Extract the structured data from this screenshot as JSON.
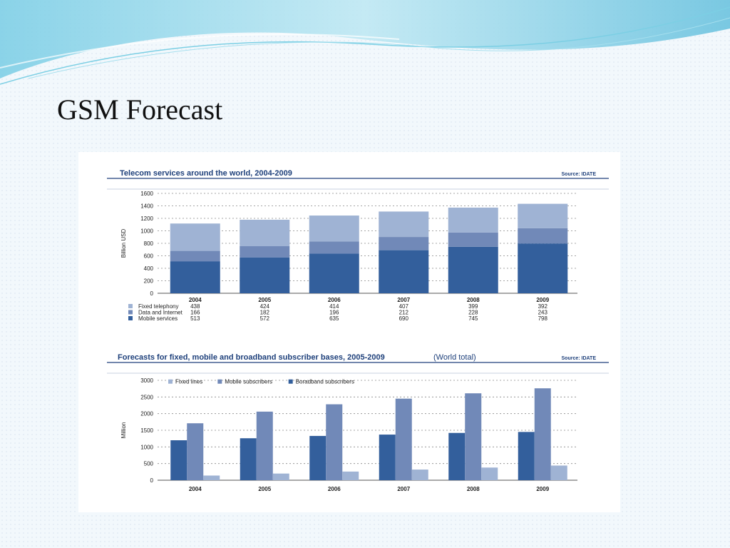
{
  "slide": {
    "title": "GSM Forecast"
  },
  "colors": {
    "fixed": "#9fb3d4",
    "data": "#7189b8",
    "mobile": "#335f9c",
    "title_blue": "#1d3f7a",
    "swoosh_light": "#c9ecf5",
    "swoosh_mid": "#8fd7ea"
  },
  "chart_data": [
    {
      "type": "bar",
      "stacked": true,
      "title": "Telecom services around the world, 2004-2009",
      "source": "Source: IDATE",
      "ylabel": "Billion USD",
      "ylim": [
        0,
        1600
      ],
      "yticks": [
        0,
        200,
        400,
        600,
        800,
        1000,
        1200,
        1400,
        1600
      ],
      "grid": true,
      "categories": [
        "2004",
        "2005",
        "2006",
        "2007",
        "2008",
        "2009"
      ],
      "series": [
        {
          "name": "Fixed telephony",
          "values": [
            438,
            424,
            414,
            407,
            399,
            392
          ]
        },
        {
          "name": "Data and Internet",
          "values": [
            166,
            182,
            196,
            212,
            228,
            243
          ]
        },
        {
          "name": "Mobile services",
          "values": [
            513,
            572,
            635,
            690,
            745,
            798
          ]
        }
      ],
      "value_labels": [
        [
          "438",
          "424",
          "414",
          "407",
          "399",
          "392"
        ],
        [
          "166",
          "182",
          "196",
          "212",
          "228",
          "243"
        ],
        [
          "513",
          "572",
          "635",
          "690",
          "745",
          "798"
        ]
      ]
    },
    {
      "type": "bar",
      "title": "Forecasts for fixed, mobile and broadband subscriber bases, 2005-2009",
      "subtitle": "(World total)",
      "source": "Source: IDATE",
      "ylabel": "Million",
      "ylim": [
        0,
        3000
      ],
      "yticks": [
        0,
        500,
        1000,
        1500,
        2000,
        2500,
        3000
      ],
      "grid": true,
      "legend_position": "top-left",
      "categories": [
        "2004",
        "2005",
        "2006",
        "2007",
        "2008",
        "2009"
      ],
      "series": [
        {
          "name": "Boradband subscribers",
          "values": [
            1200,
            1260,
            1330,
            1370,
            1420,
            1450
          ]
        },
        {
          "name": "Mobile subscribers",
          "values": [
            1710,
            2060,
            2280,
            2450,
            2610,
            2760
          ]
        },
        {
          "name": "Fixed lines",
          "values": [
            140,
            200,
            260,
            320,
            380,
            440
          ]
        }
      ],
      "legend_order": [
        "Fixed lines",
        "Mobile subscribers",
        "Boradband subscribers"
      ]
    }
  ]
}
